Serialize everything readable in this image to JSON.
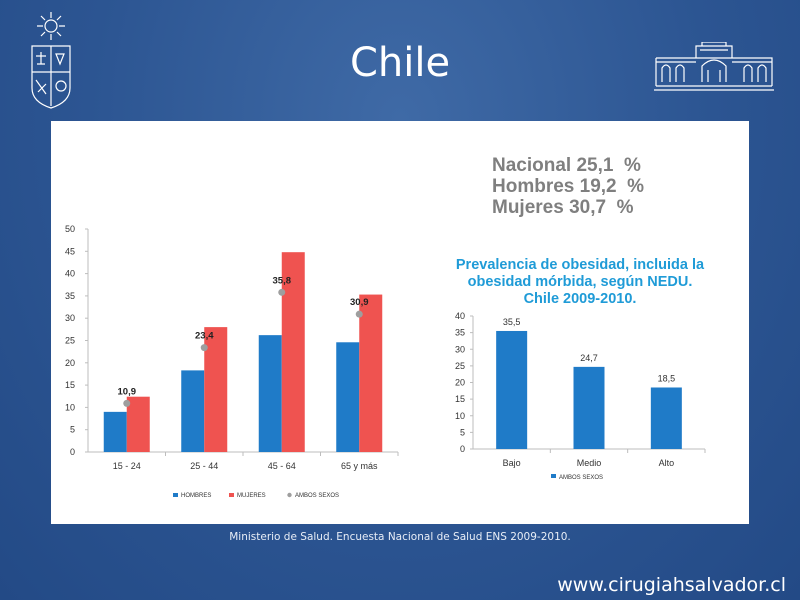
{
  "slide": {
    "title": "Chile",
    "source": "Ministerio de Salud. Encuesta Nacional de Salud ENS 2009-2010.",
    "website": "www.cirugiahsalvador.cl"
  },
  "summary": {
    "lines": [
      "Nacional 25,1  %",
      "Hombres 19,2  %",
      "Mujeres 30,7  %"
    ]
  },
  "colors": {
    "hombres": "#1f7bc8",
    "mujeres": "#ef5350",
    "ambos": "#9e9e9e",
    "title_blue": "#1f9bd7"
  },
  "chart_data": [
    {
      "type": "bar",
      "categories": [
        "15 - 24",
        "25 - 44",
        "45 - 64",
        "65 y más"
      ],
      "series": [
        {
          "name": "HOMBRES",
          "values": [
            9,
            18.3,
            26.2,
            24.6
          ]
        },
        {
          "name": "MUJERES",
          "values": [
            12.4,
            28,
            44.8,
            35.3
          ]
        },
        {
          "name": "AMBOS SEXOS",
          "values": [
            10.9,
            23.4,
            35.8,
            30.9
          ],
          "labels": [
            "10,9",
            "23,4",
            "35,8",
            "30,9"
          ]
        }
      ],
      "ylim": [
        0,
        50
      ],
      "yticks": [
        "0",
        "5",
        "10",
        "15",
        "20",
        "25",
        "30",
        "35",
        "40",
        "45",
        "50"
      ],
      "legend_position": "bottom"
    },
    {
      "type": "bar",
      "title": "Prevalencia de obesidad, incluida la obesidad mórbida, según NEDU. Chile 2009-2010.",
      "title_lines": [
        "Prevalencia de obesidad, incluida la",
        "obesidad mórbida, según NEDU.",
        "Chile 2009-2010."
      ],
      "categories": [
        "Bajo",
        "Medio",
        "Alto"
      ],
      "series": [
        {
          "name": "AMBOS SEXOS",
          "values": [
            35.5,
            24.7,
            18.5
          ],
          "labels": [
            "35,5",
            "24,7",
            "18,5"
          ]
        }
      ],
      "ylim": [
        0,
        40
      ],
      "yticks": [
        "0",
        "5",
        "10",
        "15",
        "20",
        "25",
        "30",
        "35",
        "40"
      ],
      "legend_position": "bottom"
    }
  ]
}
